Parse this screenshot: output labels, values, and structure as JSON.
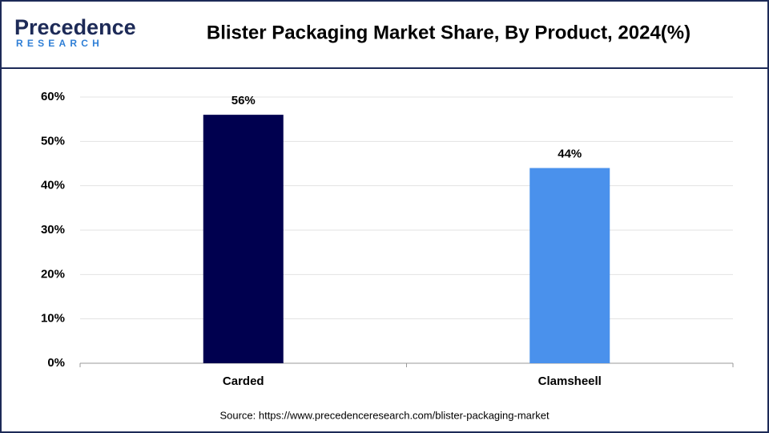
{
  "logo": {
    "name": "Precedence",
    "tagline": "RESEARCH"
  },
  "chart_data": {
    "type": "bar",
    "title": "Blister Packaging Market Share, By Product, 2024(%)",
    "categories": [
      "Carded",
      "Clamsheell"
    ],
    "values": [
      56,
      44
    ],
    "value_labels": [
      "56%",
      "44%"
    ],
    "colors": [
      "#00004f",
      "#4a91ec"
    ],
    "ylim": [
      0,
      60
    ],
    "yticks": [
      {
        "value": 0,
        "label": "0%"
      },
      {
        "value": 10,
        "label": "10%"
      },
      {
        "value": 20,
        "label": "20%"
      },
      {
        "value": 30,
        "label": "30%"
      },
      {
        "value": 40,
        "label": "40%"
      },
      {
        "value": 50,
        "label": "50%"
      },
      {
        "value": 60,
        "label": "60%"
      }
    ],
    "grid": true,
    "source": "Source: https://www.precedenceresearch.com/blister-packaging-market"
  }
}
